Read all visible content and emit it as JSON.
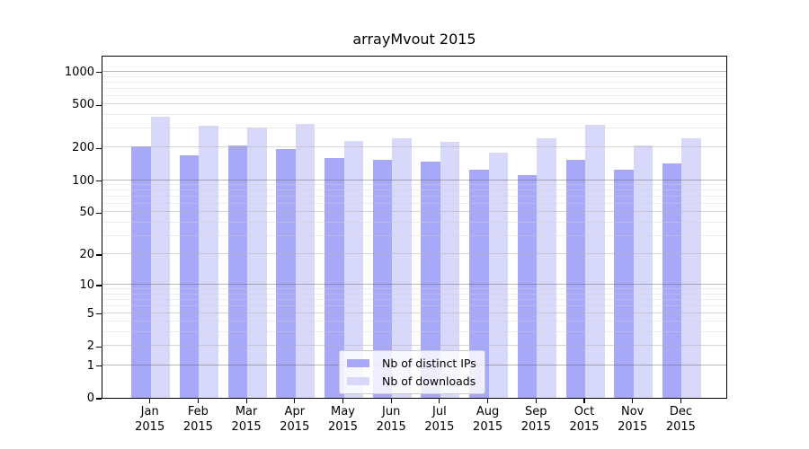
{
  "chart_data": {
    "type": "bar",
    "title": "arrayMvout 2015",
    "months": [
      "Jan",
      "Feb",
      "Mar",
      "Apr",
      "May",
      "Jun",
      "Jul",
      "Aug",
      "Sep",
      "Oct",
      "Nov",
      "Dec"
    ],
    "year": "2015",
    "categories": [
      "Jan 2015",
      "Feb 2015",
      "Mar 2015",
      "Apr 2015",
      "May 2015",
      "Jun 2015",
      "Jul 2015",
      "Aug 2015",
      "Sep 2015",
      "Oct 2015",
      "Nov 2015",
      "Dec 2015"
    ],
    "series": [
      {
        "key": "distinct-ips",
        "name": "Nb of distinct IPs",
        "color": "#a8a8f8",
        "values": [
          204,
          169,
          210,
          193,
          160,
          155,
          149,
          124,
          112,
          155,
          125,
          142
        ]
      },
      {
        "key": "downloads",
        "name": "Nb of downloads",
        "color": "#d8d8fa",
        "values": [
          387,
          316,
          306,
          332,
          230,
          242,
          225,
          180,
          245,
          326,
          211,
          245
        ]
      }
    ],
    "y_ticks": [
      0,
      1,
      2,
      5,
      10,
      20,
      50,
      100,
      200,
      500,
      1000
    ],
    "yscale": "log10(1+x)",
    "ylim": [
      0,
      1400
    ],
    "xlabel": "",
    "ylabel": "",
    "grid": "horizontal major + faint minor, drawn over bars",
    "legend_position": "inside bottom-center",
    "axis_color": "#000000",
    "background": "#ffffff"
  }
}
